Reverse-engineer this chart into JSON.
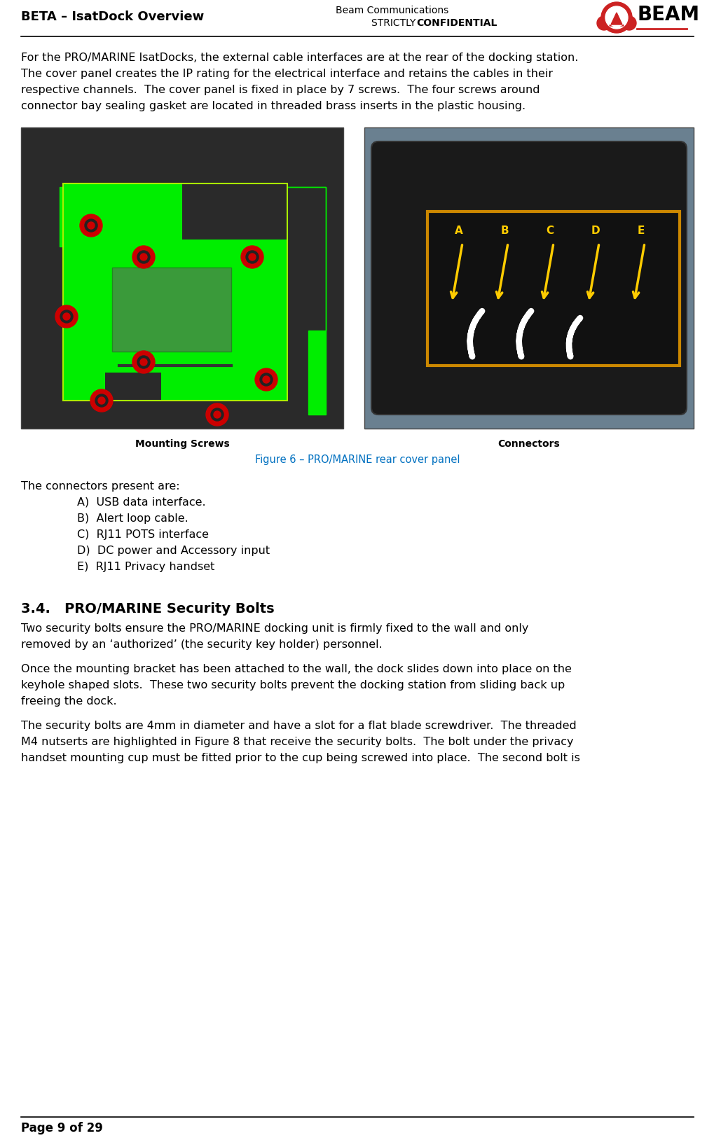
{
  "header_left": "BETA – IsatDock Overview",
  "header_right_line1": "Beam Communications",
  "header_right_line2": "STRICTLY CONFIDENTIAL",
  "footer_text": "Page 9 of 29",
  "lines_para1": [
    "For the PRO/MARINE IsatDocks, the external cable interfaces are at the rear of the docking station.",
    "The cover panel creates the IP rating for the electrical interface and retains the cables in their",
    "respective channels.  The cover panel is fixed in place by 7 screws.  The four screws around",
    "connector bay sealing gasket are located in threaded brass inserts in the plastic housing."
  ],
  "caption_left": "Mounting Screws",
  "caption_right": "Connectors",
  "figure_caption": "Figure 6 – PRO/MARINE rear cover panel",
  "connectors_header": "The connectors present are:",
  "connectors": [
    "A)  USB data interface.",
    "B)  Alert loop cable.",
    "C)  RJ11 POTS interface",
    "D)  DC power and Accessory input",
    "E)  RJ11 Privacy handset"
  ],
  "section_title": "3.4.   PRO/MARINE Security Bolts",
  "para1_lines": [
    "Two security bolts ensure the PRO/MARINE docking unit is firmly fixed to the wall and only",
    "removed by an ‘authorized’ (the security key holder) personnel."
  ],
  "para2_lines": [
    "Once the mounting bracket has been attached to the wall, the dock slides down into place on the",
    "keyhole shaped slots.  These two security bolts prevent the docking station from sliding back up",
    "freeing the dock."
  ],
  "para3_lines": [
    "The security bolts are 4mm in diameter and have a slot for a flat blade screwdriver.  The threaded",
    "M4 nutserts are highlighted in Figure 8 that receive the security bolts.  The bolt under the privacy",
    "handset mounting cup must be fitted prior to the cup being screwed into place.  The second bolt is"
  ],
  "bg_color": "#ffffff",
  "text_color": "#000000",
  "figure_caption_color": "#0070c0",
  "left_img_bg": "#2a2a2a",
  "left_img_green": "#00ee00",
  "right_img_bg": "#5a7a8a",
  "connector_box_color": "#cc8800",
  "connector_box_fill": "#1a1a1a",
  "arrow_color": "#ffcc00",
  "screw_outer": "#cc0000",
  "screw_inner": "#dd4444"
}
